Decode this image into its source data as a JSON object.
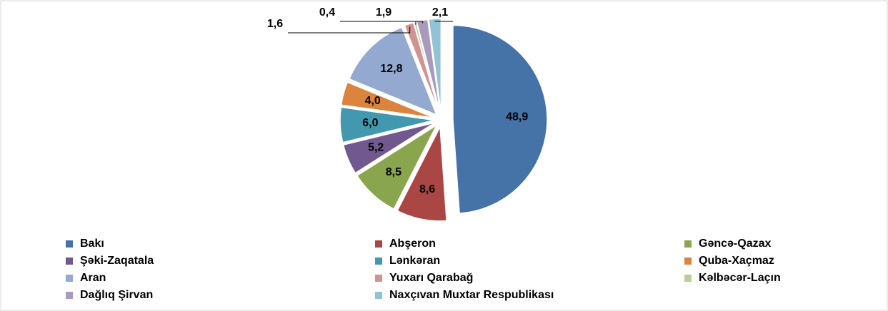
{
  "chart_data": {
    "type": "pie",
    "categories": [
      "Bakı",
      "Abşeron",
      "Gəncə-Qazax",
      "Şəki-Zaqatala",
      "Lənkəran",
      "Quba-Xaçmaz",
      "Aran",
      "Yuxarı Qarabağ",
      "Kəlbəcər-Laçın",
      "Dağlıq Şirvan",
      "Naxçıvan Muxtar Respublikası"
    ],
    "values": [
      48.9,
      8.6,
      8.5,
      5.2,
      6.0,
      4.0,
      12.8,
      1.6,
      0.4,
      1.9,
      2.1
    ],
    "value_labels": [
      "48,9",
      "8,6",
      "8,5",
      "5,2",
      "6,0",
      "4,0",
      "12,8",
      "1,6",
      "0,4",
      "1,9",
      "2,1"
    ],
    "colors": [
      "#4572a7",
      "#aa4643",
      "#89a54e",
      "#71588f",
      "#4198af",
      "#db843d",
      "#93a9cf",
      "#d19392",
      "#b9cd96",
      "#a99bbd",
      "#92c3d5"
    ],
    "legend": "bottom"
  }
}
